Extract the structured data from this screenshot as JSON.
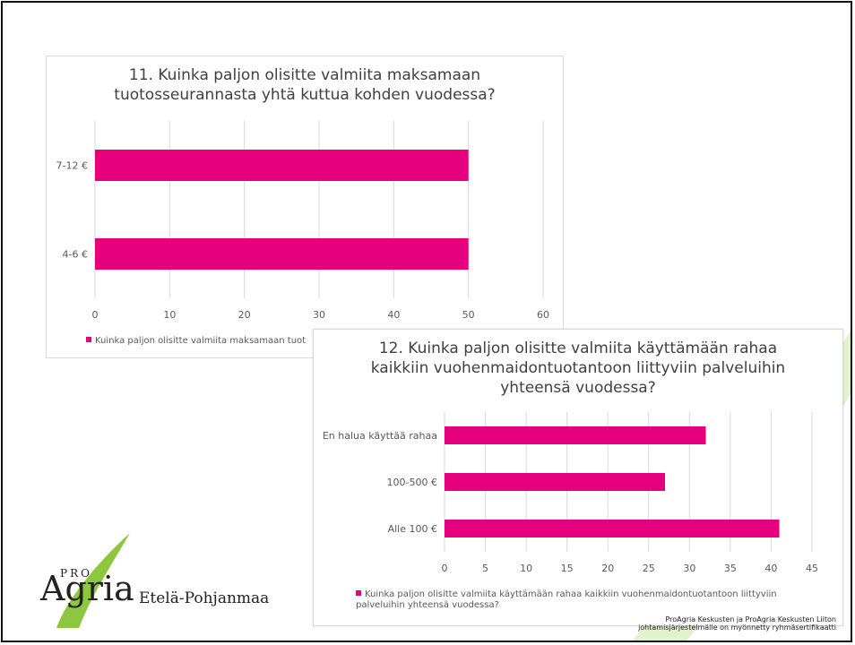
{
  "colors": {
    "bar": "#e6007e",
    "logo_green": "#8dc63f",
    "grid": "#d9d9d9",
    "text": "#595959"
  },
  "branding": {
    "logo_pro": "PRO",
    "logo_agria": "Agria",
    "region": "Etelä-Pohjanmaa",
    "footer_line1": "ProAgria Keskusten ja ProAgria Keskusten Liiton",
    "footer_line2": "johtamisjärjestelmälle on myönnetty ryhmäsertifikaatti"
  },
  "chart_data": [
    {
      "type": "bar",
      "orientation": "horizontal",
      "title": "11. Kuinka paljon olisitte valmiita maksamaan tuotosseurannasta yhtä kuttua kohden vuodessa?",
      "categories": [
        "7-12 €",
        "4-6 €"
      ],
      "series": [
        {
          "name": "Kuinka paljon olisitte valmiita maksamaan tuot",
          "values": [
            50,
            50
          ]
        }
      ],
      "xlim": [
        0,
        60
      ],
      "xticks": [
        "0",
        "10",
        "20",
        "30",
        "40",
        "50",
        "60"
      ],
      "grid": true,
      "legend": "bottom"
    },
    {
      "type": "bar",
      "orientation": "horizontal",
      "title": "12. Kuinka paljon olisitte valmiita käyttämään rahaa kaikkiin vuohenmaidontuotantoon liittyviin palveluihin yhteensä vuodessa?",
      "categories": [
        "En halua käyttää rahaa",
        "100-500 €",
        "Alle 100 €"
      ],
      "series": [
        {
          "name": "Kuinka paljon olisitte valmiita käyttämään rahaa kaikkiin vuohenmaidontuotantoon liittyviin palveluihin yhteensä vuodessa?",
          "values": [
            32,
            27,
            41
          ]
        }
      ],
      "xlim": [
        0,
        45
      ],
      "xticks": [
        "0",
        "5",
        "10",
        "15",
        "20",
        "25",
        "30",
        "35",
        "40",
        "45"
      ],
      "grid": true,
      "legend": "bottom"
    }
  ]
}
